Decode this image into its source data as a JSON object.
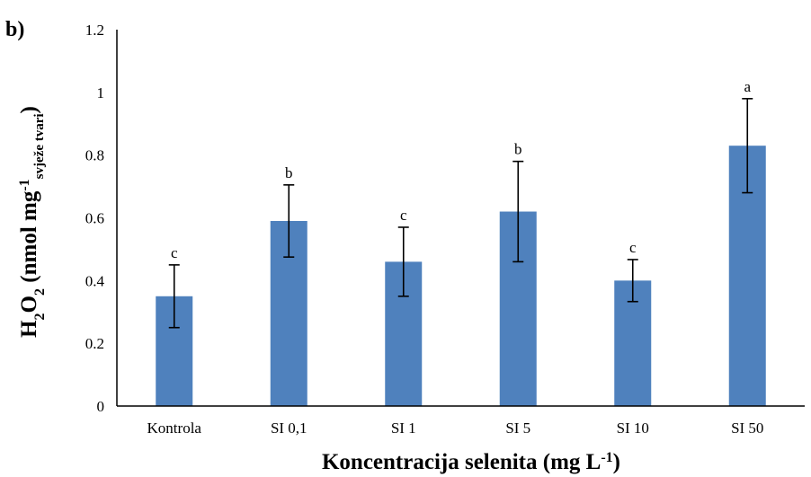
{
  "chart_data": {
    "type": "bar",
    "panel_label": "b)",
    "categories": [
      "Kontrola",
      "SI 0,1",
      "SI 1",
      "SI 5",
      "SI 10",
      "SI 50"
    ],
    "values": [
      0.35,
      0.59,
      0.46,
      0.62,
      0.4,
      0.83
    ],
    "errors": [
      0.1,
      0.115,
      0.11,
      0.16,
      0.067,
      0.15
    ],
    "significance_letters": [
      "c",
      "b",
      "c",
      "b",
      "c",
      "a"
    ],
    "ylim": [
      0,
      1.2
    ],
    "yticks": [
      "0",
      "0.2",
      "0.4",
      "0.6",
      "0.8",
      "1",
      "1.2"
    ],
    "ylabel": {
      "main": "H",
      "sub1": "2",
      "mid": "O",
      "sub2": "2",
      "rest": " (nmol mg",
      "sup": "-1",
      "sub3": "svježe tvari",
      "close": ")"
    },
    "xlabel": {
      "main": "Koncentracija selenita (mg L",
      "sup": "-1",
      "close": ")"
    },
    "grid": false,
    "colors": {
      "bar": "#4f81bd",
      "axis": "#000000"
    }
  }
}
